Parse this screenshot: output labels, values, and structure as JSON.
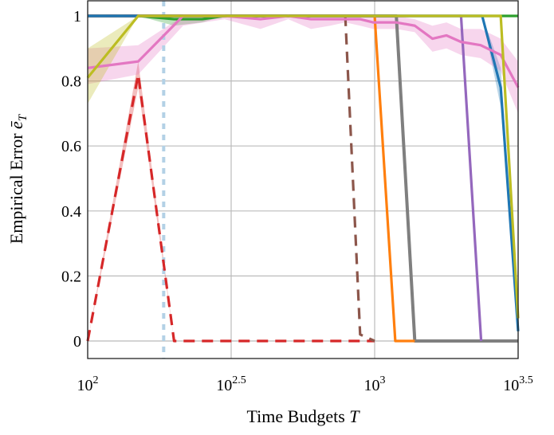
{
  "chart_data": {
    "type": "line",
    "title": "",
    "xlabel": "Time Budgets",
    "xlabel_var": "T",
    "ylabel": "Empirical Error",
    "ylabel_var": "ē",
    "ylabel_sub": "T",
    "xscale": "log",
    "xlim": [
      100,
      3162
    ],
    "ylim": [
      -0.05,
      1.05
    ],
    "grid": true,
    "legend": "none",
    "xticks": [
      {
        "value": 100,
        "base": "10",
        "exp": "2"
      },
      {
        "value": 316.2,
        "base": "10",
        "exp": "2.5"
      },
      {
        "value": 1000,
        "base": "10",
        "exp": "3"
      },
      {
        "value": 3162,
        "base": "10",
        "exp": "3.5"
      }
    ],
    "yticks": [
      {
        "value": 0,
        "label": "0"
      },
      {
        "value": 0.2,
        "label": "0.2"
      },
      {
        "value": 0.4,
        "label": "0.4"
      },
      {
        "value": 0.6,
        "label": "0.6"
      },
      {
        "value": 0.8,
        "label": "0.8"
      },
      {
        "value": 1,
        "label": "1"
      }
    ],
    "vline": {
      "x": 184,
      "color": "#b3d1e6",
      "style": "dotted"
    },
    "series": [
      {
        "color": "#7f7f7f",
        "dash": false,
        "x": [
          100,
          150,
          200,
          1000,
          1190,
          1380,
          3162
        ],
        "y": [
          1,
          1,
          1,
          1,
          1,
          0,
          0
        ]
      },
      {
        "color": "#2ca02c",
        "dash": false,
        "x": [
          100,
          150,
          200,
          250,
          300,
          1000,
          3162
        ],
        "y": [
          1,
          1,
          0.99,
          0.99,
          1,
          1,
          1
        ],
        "band_lo": [
          1,
          1,
          0.97,
          0.98,
          1,
          1,
          1
        ],
        "band_hi": [
          1,
          1,
          1,
          1,
          1,
          1,
          1
        ]
      },
      {
        "color": "#d62728",
        "dash": true,
        "x": [
          100,
          150,
          200,
          1000
        ],
        "y": [
          0,
          0.82,
          0,
          0
        ],
        "band_lo": [
          0,
          0.78,
          0,
          0
        ],
        "band_hi": [
          0,
          0.86,
          0,
          0
        ]
      },
      {
        "color": "#8c564b",
        "dash": true,
        "x": [
          100,
          790,
          890,
          1000
        ],
        "y": [
          1,
          1,
          0.02,
          0
        ]
      },
      {
        "color": "#ff7f0e",
        "dash": false,
        "x": [
          100,
          1000,
          1180,
          1380
        ],
        "y": [
          1,
          1,
          0,
          0
        ]
      },
      {
        "color": "#9467bd",
        "dash": false,
        "x": [
          100,
          2000,
          2350
        ],
        "y": [
          1,
          1,
          0
        ]
      },
      {
        "color": "#1f77b4",
        "dash": false,
        "x": [
          100,
          2370,
          2750,
          3162
        ],
        "y": [
          1,
          1,
          0.78,
          0.03
        ],
        "band_lo": [
          1,
          1,
          0.72,
          0.02
        ],
        "band_hi": [
          1,
          1,
          0.84,
          0.05
        ]
      },
      {
        "color": "#e377c2",
        "dash": false,
        "x": [
          100,
          150,
          215,
          300,
          400,
          500,
          600,
          700,
          790,
          890,
          990,
          1190,
          1380,
          1590,
          1780,
          2000,
          2340,
          2750,
          3162
        ],
        "y": [
          0.84,
          0.86,
          1,
          1,
          0.99,
          1,
          0.99,
          0.99,
          0.99,
          0.99,
          0.98,
          0.98,
          0.97,
          0.93,
          0.94,
          0.92,
          0.91,
          0.88,
          0.78
        ],
        "band_lo": [
          0.79,
          0.82,
          0.97,
          0.99,
          0.96,
          0.99,
          0.96,
          0.97,
          0.98,
          0.97,
          0.96,
          0.96,
          0.95,
          0.89,
          0.9,
          0.88,
          0.87,
          0.83,
          0.7
        ],
        "band_hi": [
          0.9,
          0.91,
          1,
          1,
          1,
          1,
          1,
          1,
          1,
          1,
          1,
          1,
          0.99,
          0.97,
          0.98,
          0.96,
          0.96,
          0.93,
          0.86
        ]
      },
      {
        "color": "#bcbd22",
        "dash": false,
        "x": [
          100,
          150,
          2750,
          3162
        ],
        "y": [
          0.81,
          1,
          1,
          0.07
        ],
        "band_lo": [
          0.73,
          1,
          1,
          0.05
        ],
        "band_hi": [
          0.9,
          1,
          1,
          0.09
        ]
      }
    ]
  }
}
